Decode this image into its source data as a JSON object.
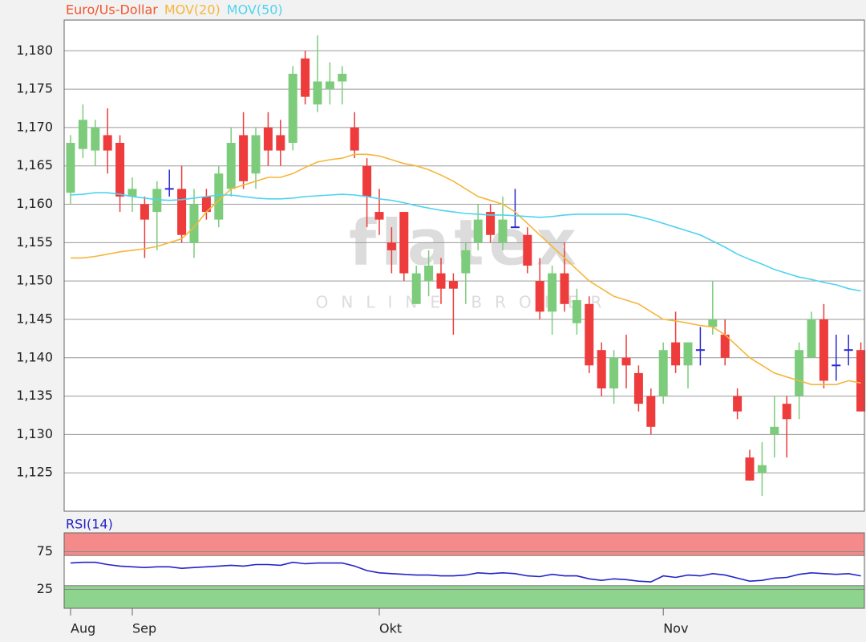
{
  "chart_data": [
    {
      "type": "candlestick",
      "watermark": "flatex",
      "watermark_subtitle": "ONLINE BROKER",
      "categories": [
        "Aug",
        null,
        null,
        null,
        null,
        "Sep",
        null,
        null,
        null,
        null,
        null,
        null,
        null,
        null,
        null,
        null,
        null,
        null,
        null,
        null,
        null,
        null,
        null,
        null,
        null,
        "Okt",
        null,
        null,
        null,
        null,
        null,
        null,
        null,
        null,
        null,
        null,
        null,
        null,
        null,
        null,
        null,
        null,
        null,
        null,
        null,
        null,
        null,
        null,
        "Nov",
        null,
        null,
        null,
        null,
        null,
        null,
        null,
        null,
        null,
        null,
        null,
        null,
        null,
        null,
        null,
        null
      ],
      "up_color": "#7ccc7c",
      "down_color": "#ee3b3b",
      "flat_color": "#2a2ad0",
      "series": [
        {
          "name": "Euro/Us-Dollar",
          "color": "#f0552a",
          "open": [
            1.1615,
            1.1672,
            1.167,
            1.169,
            1.168,
            1.161,
            1.16,
            1.159,
            1.162,
            1.162,
            1.155,
            1.161,
            1.158,
            1.162,
            1.169,
            1.164,
            1.17,
            1.169,
            1.168,
            1.179,
            1.173,
            1.175,
            1.176,
            1.17,
            1.165,
            1.159,
            1.155,
            1.159,
            1.147,
            1.15,
            1.151,
            1.15,
            1.151,
            1.155,
            1.159,
            1.155,
            1.157,
            1.156,
            1.15,
            1.146,
            1.151,
            1.1445,
            1.147,
            1.141,
            1.136,
            1.14,
            1.138,
            1.135,
            1.135,
            1.142,
            1.139,
            1.141,
            1.144,
            1.143,
            1.135,
            1.127,
            1.125,
            1.13,
            1.134,
            1.135,
            1.14,
            1.145,
            1.139,
            1.141,
            1.141
          ],
          "high": [
            1.169,
            1.173,
            1.171,
            1.1725,
            1.169,
            1.1635,
            1.161,
            1.163,
            1.1645,
            1.165,
            1.162,
            1.162,
            1.165,
            1.17,
            1.172,
            1.17,
            1.172,
            1.171,
            1.178,
            1.18,
            1.182,
            1.1785,
            1.178,
            1.172,
            1.166,
            1.162,
            1.157,
            1.159,
            1.152,
            1.154,
            1.153,
            1.151,
            1.155,
            1.16,
            1.16,
            1.161,
            1.162,
            1.157,
            1.153,
            1.152,
            1.155,
            1.149,
            1.148,
            1.142,
            1.141,
            1.143,
            1.139,
            1.136,
            1.142,
            1.146,
            1.142,
            1.144,
            1.15,
            1.145,
            1.136,
            1.128,
            1.129,
            1.135,
            1.135,
            1.142,
            1.146,
            1.147,
            1.143,
            1.143,
            1.142
          ],
          "low": [
            1.16,
            1.166,
            1.165,
            1.164,
            1.159,
            1.159,
            1.153,
            1.154,
            1.161,
            1.155,
            1.153,
            1.158,
            1.157,
            1.161,
            1.162,
            1.162,
            1.165,
            1.165,
            1.167,
            1.173,
            1.172,
            1.173,
            1.173,
            1.166,
            1.157,
            1.156,
            1.151,
            1.15,
            1.147,
            1.148,
            1.147,
            1.143,
            1.147,
            1.154,
            1.155,
            1.154,
            1.157,
            1.151,
            1.145,
            1.143,
            1.146,
            1.143,
            1.138,
            1.135,
            1.134,
            1.136,
            1.133,
            1.13,
            1.134,
            1.138,
            1.136,
            1.139,
            1.143,
            1.139,
            1.132,
            1.124,
            1.122,
            1.127,
            1.127,
            1.132,
            1.14,
            1.136,
            1.137,
            1.139,
            1.133
          ],
          "close": [
            1.168,
            1.171,
            1.17,
            1.167,
            1.161,
            1.162,
            1.158,
            1.162,
            1.162,
            1.156,
            1.16,
            1.159,
            1.164,
            1.168,
            1.163,
            1.169,
            1.167,
            1.167,
            1.177,
            1.174,
            1.176,
            1.176,
            1.177,
            1.167,
            1.161,
            1.158,
            1.154,
            1.151,
            1.151,
            1.152,
            1.149,
            1.149,
            1.154,
            1.158,
            1.156,
            1.158,
            1.157,
            1.152,
            1.146,
            1.151,
            1.147,
            1.1475,
            1.139,
            1.136,
            1.14,
            1.139,
            1.134,
            1.131,
            1.141,
            1.139,
            1.142,
            1.141,
            1.145,
            1.14,
            1.133,
            1.124,
            1.126,
            1.131,
            1.132,
            1.141,
            1.145,
            1.137,
            1.139,
            1.141,
            1.133
          ]
        },
        {
          "name": "MOV(20)",
          "type": "line",
          "color": "#f5b63a",
          "values": [
            1.153,
            1.153,
            1.1532,
            1.1535,
            1.1538,
            1.154,
            1.1542,
            1.1545,
            1.155,
            1.1555,
            1.157,
            1.159,
            1.1605,
            1.162,
            1.1625,
            1.163,
            1.1635,
            1.1635,
            1.164,
            1.1648,
            1.1655,
            1.1658,
            1.166,
            1.1665,
            1.1665,
            1.1663,
            1.1658,
            1.1653,
            1.165,
            1.1645,
            1.1638,
            1.163,
            1.162,
            1.161,
            1.1605,
            1.16,
            1.159,
            1.1575,
            1.156,
            1.1545,
            1.153,
            1.1515,
            1.15,
            1.149,
            1.148,
            1.1475,
            1.147,
            1.146,
            1.145,
            1.1448,
            1.1445,
            1.1442,
            1.144,
            1.143,
            1.1415,
            1.14,
            1.139,
            1.138,
            1.1375,
            1.137,
            1.1365,
            1.1365,
            1.1365,
            1.137,
            1.1367
          ]
        },
        {
          "name": "MOV(50)",
          "type": "line",
          "color": "#4fd3ef",
          "values": [
            1.1612,
            1.1613,
            1.1615,
            1.1615,
            1.1613,
            1.161,
            1.1608,
            1.1606,
            1.1605,
            1.1606,
            1.1608,
            1.161,
            1.1612,
            1.1612,
            1.161,
            1.1608,
            1.1607,
            1.1607,
            1.1608,
            1.161,
            1.1611,
            1.1612,
            1.1613,
            1.1612,
            1.161,
            1.1607,
            1.1605,
            1.1602,
            1.1598,
            1.1595,
            1.1592,
            1.159,
            1.1588,
            1.1587,
            1.1586,
            1.1586,
            1.1585,
            1.1584,
            1.1583,
            1.1584,
            1.1586,
            1.1587,
            1.1587,
            1.1587,
            1.1587,
            1.1587,
            1.1584,
            1.158,
            1.1575,
            1.157,
            1.1565,
            1.156,
            1.1552,
            1.1544,
            1.1535,
            1.1528,
            1.1522,
            1.1515,
            1.151,
            1.1505,
            1.1502,
            1.1498,
            1.1495,
            1.149,
            1.1487
          ]
        }
      ],
      "ylim": [
        1.12,
        1.184
      ],
      "yticks": [
        {
          "value": 1.125,
          "label": "1,125"
        },
        {
          "value": 1.13,
          "label": "1,130"
        },
        {
          "value": 1.135,
          "label": "1,135"
        },
        {
          "value": 1.14,
          "label": "1,140"
        },
        {
          "value": 1.145,
          "label": "1,145"
        },
        {
          "value": 1.15,
          "label": "1,150"
        },
        {
          "value": 1.155,
          "label": "1,155"
        },
        {
          "value": 1.16,
          "label": "1,160"
        },
        {
          "value": 1.165,
          "label": "1,165"
        },
        {
          "value": 1.17,
          "label": "1,170"
        },
        {
          "value": 1.175,
          "label": "1,175"
        },
        {
          "value": 1.18,
          "label": "1,180"
        }
      ],
      "grid": true
    },
    {
      "type": "line",
      "series": [
        {
          "name": "RSI(14)",
          "color": "#2323c8",
          "values": [
            60,
            61,
            61,
            58,
            56,
            55,
            54,
            55,
            55,
            53,
            54,
            55,
            56,
            57,
            56,
            58,
            58,
            57,
            61,
            59,
            60,
            60,
            60,
            56,
            50,
            47,
            46,
            45,
            44,
            44,
            43,
            43,
            44,
            47,
            46,
            47,
            46,
            43,
            42,
            45,
            43,
            43,
            39,
            37,
            39,
            38,
            36,
            35,
            43,
            41,
            44,
            43,
            46,
            44,
            40,
            36,
            37,
            40,
            41,
            45,
            47,
            46,
            45,
            46,
            43
          ]
        }
      ],
      "bands": [
        {
          "from": 70,
          "to": 100,
          "color": "#f58a8a"
        },
        {
          "from": 0,
          "to": 30,
          "color": "#8ed48e"
        }
      ],
      "ylim": [
        0,
        100
      ],
      "yticks": [
        25,
        75
      ],
      "grid": true
    }
  ]
}
